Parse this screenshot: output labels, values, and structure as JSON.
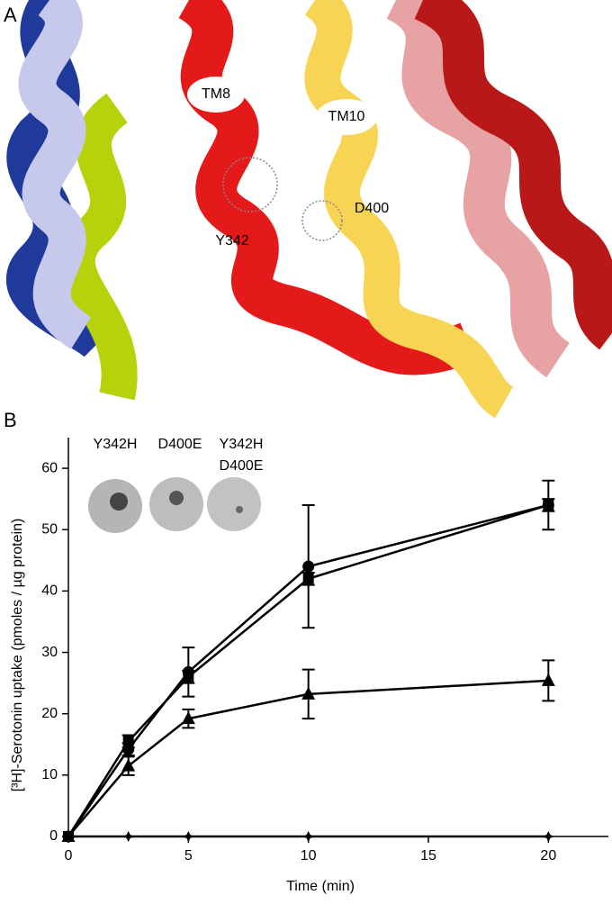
{
  "panel_a": {
    "label": "A",
    "labels": [
      "TM8",
      "TM10",
      "D400",
      "Y342"
    ]
  },
  "chart_data": {
    "type": "line",
    "panel_label": "B",
    "x_label": "Time (min)",
    "y_label": "[³H]-Serotonin uptake (pmoles / µg protein)",
    "x": [
      0,
      2.5,
      5,
      10,
      20
    ],
    "xlim": [
      0,
      22.5
    ],
    "xticks": [
      0,
      5,
      10,
      15,
      20
    ],
    "ylim": [
      0,
      65
    ],
    "yticks": [
      0,
      10,
      20,
      30,
      40,
      50,
      60
    ],
    "inset_labels": [
      [
        "Y342H"
      ],
      [
        "D400E"
      ],
      [
        "Y342H",
        "D400E"
      ]
    ],
    "series": [
      {
        "marker": "circle",
        "color": "#000000",
        "values": [
          0,
          14.2,
          26.8,
          44,
          54
        ],
        "errors": [
          null,
          1,
          4,
          10,
          1
        ]
      },
      {
        "marker": "square",
        "color": "#000000",
        "values": [
          0,
          15.5,
          26,
          42,
          54
        ],
        "errors": [
          null,
          1,
          1,
          1,
          4
        ]
      },
      {
        "marker": "triangle",
        "color": "#000000",
        "values": [
          0,
          11.5,
          19.2,
          23.2,
          25.4
        ],
        "errors": [
          null,
          1.5,
          1.5,
          4,
          3.3
        ]
      },
      {
        "marker": "star",
        "color": "#000000",
        "values": [
          0,
          0,
          0,
          0,
          0
        ],
        "errors": [
          null,
          0,
          0,
          0,
          0
        ]
      }
    ]
  }
}
